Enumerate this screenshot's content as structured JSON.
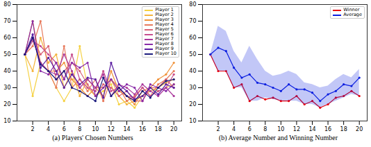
{
  "chart_data": [
    {
      "type": "line",
      "title": "(a) Players' Chosen Numbers",
      "x": [
        1,
        2,
        3,
        4,
        5,
        6,
        7,
        8,
        9,
        10,
        11,
        12,
        13,
        14,
        15,
        16,
        17,
        18,
        19,
        20
      ],
      "xlim": [
        0,
        21
      ],
      "xticks": [
        2,
        4,
        6,
        8,
        10,
        12,
        14,
        16,
        18,
        20
      ],
      "ylim": [
        10,
        80
      ],
      "yticks": [
        10,
        20,
        30,
        40,
        50,
        60,
        70,
        80
      ],
      "legend": "upper right",
      "marker": "o",
      "series": [
        {
          "name": "Player 1",
          "color": "#f5d142",
          "values": [
            50,
            25,
            45,
            40,
            30,
            22,
            30,
            55,
            30,
            25,
            28,
            32,
            20,
            22,
            18,
            25,
            30,
            28,
            30,
            32
          ]
        },
        {
          "name": "Player 2",
          "color": "#f4b43e",
          "values": [
            50,
            40,
            60,
            45,
            50,
            30,
            40,
            25,
            35,
            30,
            30,
            35,
            25,
            20,
            22,
            25,
            28,
            30,
            33,
            35
          ]
        },
        {
          "name": "Player 3",
          "color": "#f0933c",
          "values": [
            50,
            70,
            45,
            40,
            40,
            45,
            35,
            30,
            25,
            30,
            25,
            40,
            28,
            25,
            20,
            28,
            30,
            35,
            38,
            45
          ]
        },
        {
          "name": "Player 4",
          "color": "#e77a5c",
          "values": [
            50,
            55,
            70,
            40,
            30,
            55,
            30,
            35,
            28,
            35,
            22,
            35,
            30,
            22,
            25,
            30,
            25,
            32,
            35,
            40
          ]
        },
        {
          "name": "Player 5",
          "color": "#d96477",
          "values": [
            50,
            60,
            50,
            55,
            35,
            40,
            45,
            40,
            32,
            25,
            32,
            30,
            25,
            28,
            22,
            22,
            30,
            30,
            35,
            30
          ]
        },
        {
          "name": "Player 6",
          "color": "#c74e8e",
          "values": [
            50,
            58,
            55,
            50,
            45,
            35,
            50,
            35,
            30,
            28,
            40,
            28,
            30,
            25,
            24,
            30,
            25,
            28,
            30,
            38
          ]
        },
        {
          "name": "Player 7",
          "color": "#aa389c",
          "values": [
            50,
            60,
            45,
            40,
            38,
            50,
            40,
            30,
            35,
            30,
            38,
            25,
            32,
            30,
            26,
            32,
            28,
            25,
            30,
            25
          ]
        },
        {
          "name": "Player 8",
          "color": "#8a2ba8",
          "values": [
            50,
            70,
            40,
            38,
            45,
            35,
            45,
            42,
            45,
            25,
            30,
            35,
            28,
            32,
            30,
            22,
            32,
            30,
            28,
            32
          ]
        },
        {
          "name": "Player 9",
          "color": "#5b1fa2",
          "values": [
            50,
            62,
            42,
            48,
            40,
            30,
            38,
            32,
            36,
            35,
            24,
            45,
            32,
            28,
            23,
            25,
            30,
            26,
            32,
            30
          ]
        },
        {
          "name": "Player 10",
          "color": "#1c1c7e",
          "values": [
            50,
            60,
            44,
            40,
            35,
            40,
            30,
            28,
            25,
            22,
            36,
            25,
            30,
            25,
            22,
            28,
            24,
            30,
            34,
            35
          ]
        }
      ]
    },
    {
      "type": "line",
      "title": "(b) Average Number and Winning Number",
      "x": [
        1,
        2,
        3,
        4,
        5,
        6,
        7,
        8,
        9,
        10,
        11,
        12,
        13,
        14,
        15,
        16,
        17,
        18,
        19,
        20
      ],
      "xlim": [
        0,
        21
      ],
      "xticks": [
        2,
        4,
        6,
        8,
        10,
        12,
        14,
        16,
        18,
        20
      ],
      "ylim": [
        10,
        80
      ],
      "yticks": [
        10,
        20,
        30,
        40,
        50,
        60,
        70,
        80
      ],
      "legend": "upper right",
      "marker": "o",
      "series": [
        {
          "name": "Winner",
          "color": "#e8000b",
          "values": [
            50,
            40,
            40,
            30,
            32,
            22,
            25,
            23,
            24,
            22,
            22,
            25,
            20,
            22,
            18,
            20,
            24,
            25,
            28,
            25
          ]
        },
        {
          "name": "Average",
          "color": "#0a1ee0",
          "values": [
            50,
            54,
            52,
            42,
            36,
            38,
            33,
            32,
            30,
            28,
            32,
            29,
            29,
            27,
            22,
            26,
            28,
            32,
            31,
            36
          ],
          "lower": [
            50,
            40,
            40,
            30,
            30,
            22,
            22,
            24,
            23,
            22,
            22,
            22,
            20,
            20,
            18,
            20,
            22,
            24,
            26,
            25
          ],
          "upper": [
            50,
            67,
            64,
            52,
            45,
            55,
            47,
            40,
            37,
            38,
            40,
            38,
            33,
            32,
            30,
            31,
            35,
            38,
            36,
            41
          ]
        }
      ]
    }
  ]
}
